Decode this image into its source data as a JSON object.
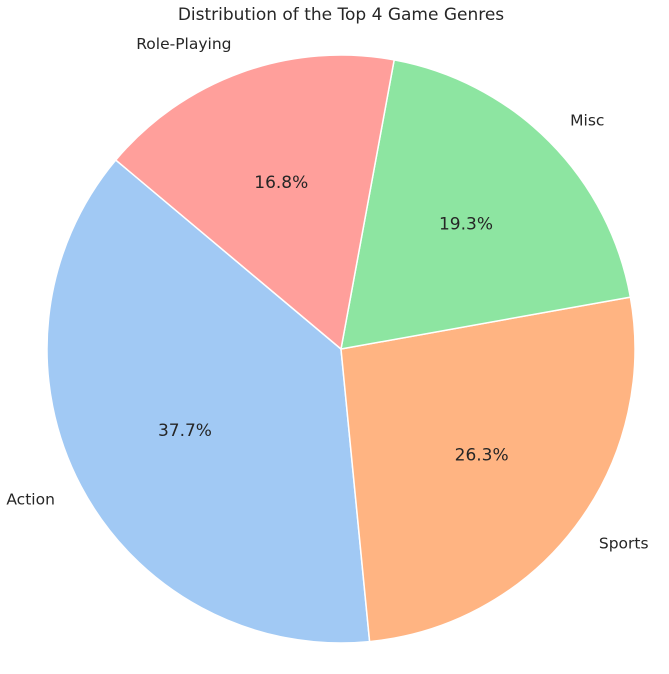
{
  "chart_data": {
    "type": "pie",
    "title": "Distribution of the Top 4 Game Genres",
    "start_angle_deg": 140,
    "direction": "counterclockwise",
    "slices": [
      {
        "label": "Action",
        "value": 37.7,
        "pct_label": "37.7%",
        "color": "#a1c9f4"
      },
      {
        "label": "Sports",
        "value": 26.3,
        "pct_label": "26.3%",
        "color": "#ffb482"
      },
      {
        "label": "Misc",
        "value": 19.3,
        "pct_label": "19.3%",
        "color": "#8de5a1"
      },
      {
        "label": "Role-Playing",
        "value": 16.8,
        "pct_label": "16.8%",
        "color": "#ff9f9b"
      }
    ],
    "slice_edge_color": "#ffffff",
    "legend": "none"
  }
}
